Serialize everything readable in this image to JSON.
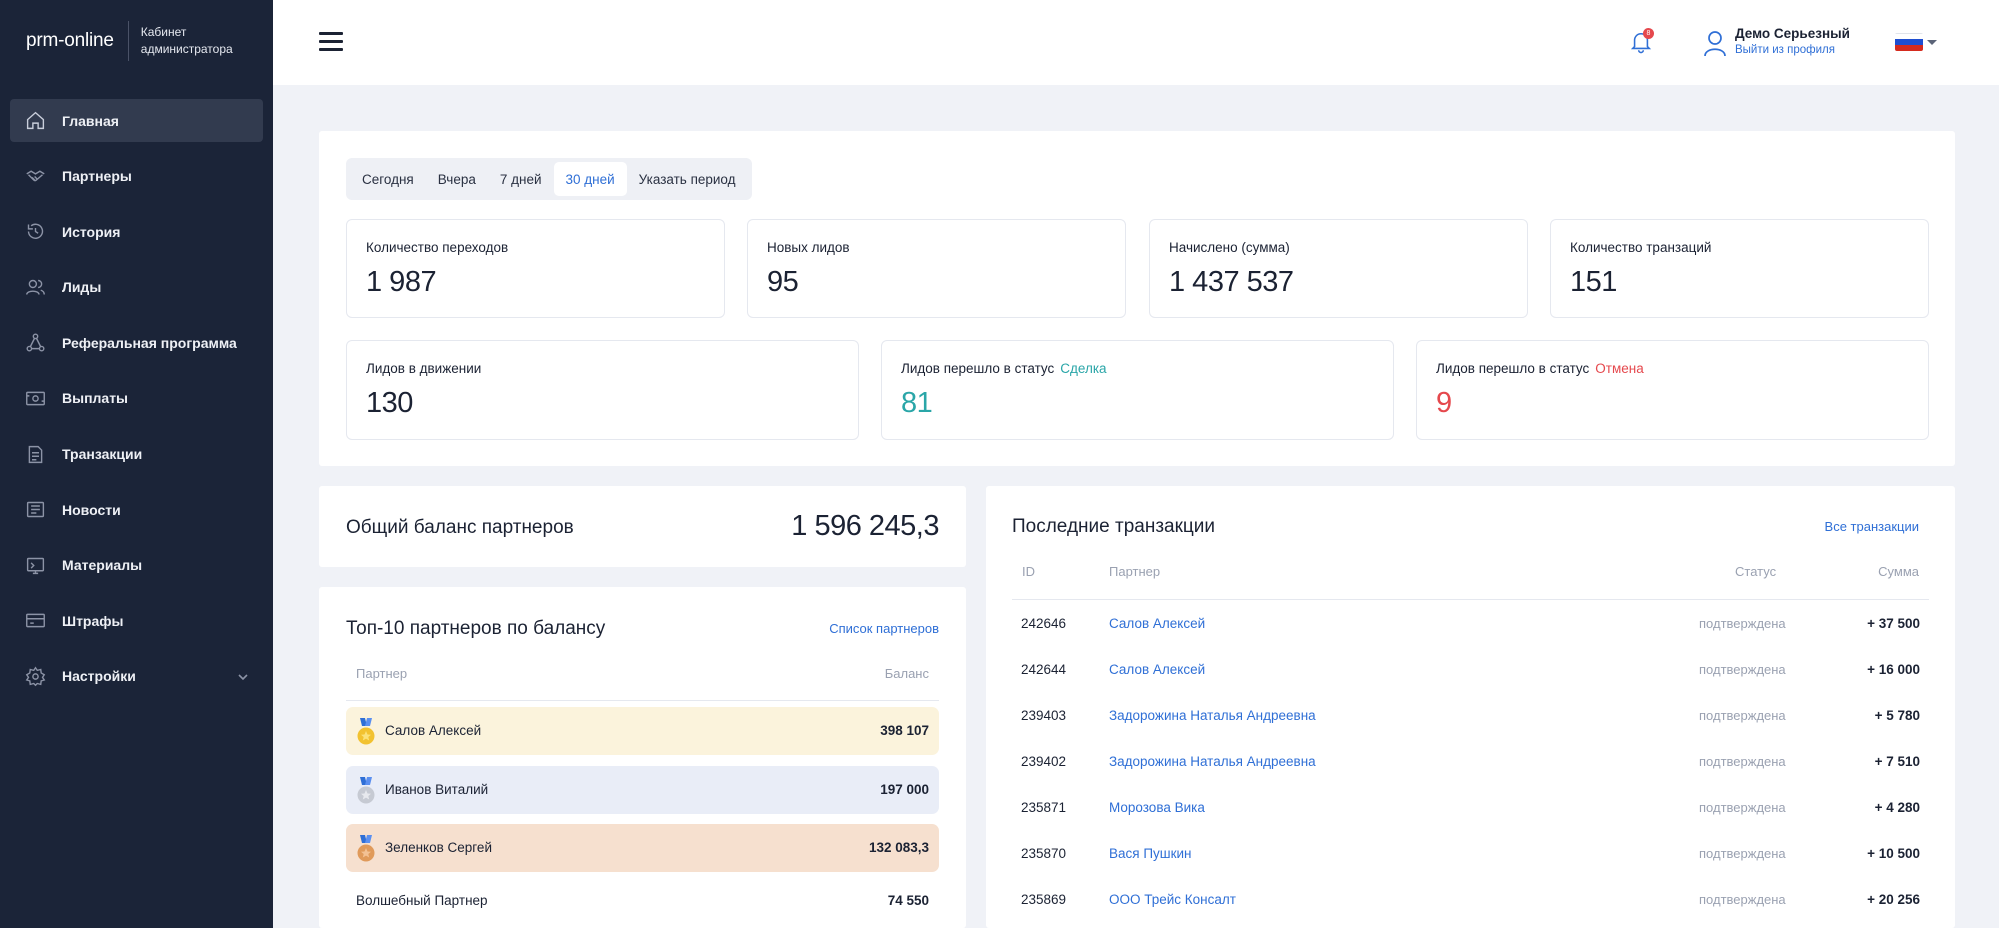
{
  "brand": {
    "logo": "prm-online",
    "subtitle_line1": "Кабинет",
    "subtitle_line2": "администратора"
  },
  "sidebar": {
    "items": [
      {
        "label": "Главная",
        "icon": "home-icon",
        "active": true
      },
      {
        "label": "Партнеры",
        "icon": "handshake-icon"
      },
      {
        "label": "История",
        "icon": "history-icon"
      },
      {
        "label": "Лиды",
        "icon": "users-icon"
      },
      {
        "label": "Реферальная программа",
        "icon": "network-icon"
      },
      {
        "label": "Выплаты",
        "icon": "payout-icon"
      },
      {
        "label": "Транзакции",
        "icon": "transactions-icon"
      },
      {
        "label": "Новости",
        "icon": "news-icon"
      },
      {
        "label": "Материалы",
        "icon": "materials-icon"
      },
      {
        "label": "Штрафы",
        "icon": "fines-icon"
      },
      {
        "label": "Настройки",
        "icon": "gear-icon",
        "has_submenu": true
      }
    ]
  },
  "topbar": {
    "notifications_count": "8",
    "user_name": "Демо Серьезный",
    "logout_label": "Выйти из профиля",
    "language": "ru"
  },
  "period_tabs": [
    {
      "label": "Сегодня"
    },
    {
      "label": "Вчера"
    },
    {
      "label": "7 дней"
    },
    {
      "label": "30 дней",
      "active": true
    },
    {
      "label": "Указать период"
    }
  ],
  "stats": {
    "row1": [
      {
        "label": "Количество переходов",
        "value": "1 987"
      },
      {
        "label": "Новых лидов",
        "value": "95"
      },
      {
        "label": "Начислено (сумма)",
        "value": "1 437 537"
      },
      {
        "label": "Количество транзаций",
        "value": "151"
      }
    ],
    "in_motion": {
      "label": "Лидов в движении",
      "value": "130"
    },
    "deal": {
      "label": "Лидов перешло в статус",
      "status": "Сделка",
      "value": "81"
    },
    "cancel": {
      "label": "Лидов перешло в статус",
      "status": "Отмена",
      "value": "9"
    }
  },
  "balance": {
    "title": "Общий баланс партнеров",
    "value": "1 596 245,3"
  },
  "top_partners": {
    "title": "Топ-10 партнеров по балансу",
    "link": "Список партнеров",
    "col_partner": "Партнер",
    "col_balance": "Баланс",
    "rows": [
      {
        "name": "Салов Алексей",
        "balance": "398 107",
        "medal": "gold"
      },
      {
        "name": "Иванов Виталий",
        "balance": "197 000",
        "medal": "silver"
      },
      {
        "name": "Зеленков Сергей",
        "balance": "132 083,3",
        "medal": "bronze"
      },
      {
        "name": "Волшебный Партнер",
        "balance": "74 550"
      }
    ]
  },
  "transactions": {
    "title": "Последние транзакции",
    "link": "Все транзакции",
    "col_id": "ID",
    "col_partner": "Партнер",
    "col_status": "Статус",
    "col_sum": "Сумма",
    "rows": [
      {
        "id": "242646",
        "partner": "Салов Алексей",
        "status": "подтверждена",
        "sum": "+ 37 500"
      },
      {
        "id": "242644",
        "partner": "Салов Алексей",
        "status": "подтверждена",
        "sum": "+ 16 000"
      },
      {
        "id": "239403",
        "partner": "Задорожина Наталья Андреевна",
        "status": "подтверждена",
        "sum": "+ 5 780"
      },
      {
        "id": "239402",
        "partner": "Задорожина Наталья Андреевна",
        "status": "подтверждена",
        "sum": "+ 7 510"
      },
      {
        "id": "235871",
        "partner": "Морозова Вика",
        "status": "подтверждена",
        "sum": "+ 4 280"
      },
      {
        "id": "235870",
        "partner": "Вася Пушкин",
        "status": "подтверждена",
        "sum": "+ 10 500"
      },
      {
        "id": "235869",
        "partner": "ООО Трейс Консалт",
        "status": "подтверждена",
        "sum": "+ 20 256"
      }
    ]
  },
  "colors": {
    "accent": "#2f6fd6",
    "sidebar": "#1b2438",
    "deal": "#2aa6a8",
    "cancel": "#e5484d",
    "gold_row": "#fbf3dc",
    "silver_row": "#e9edf7",
    "bronze_row": "#f6e0cf"
  }
}
